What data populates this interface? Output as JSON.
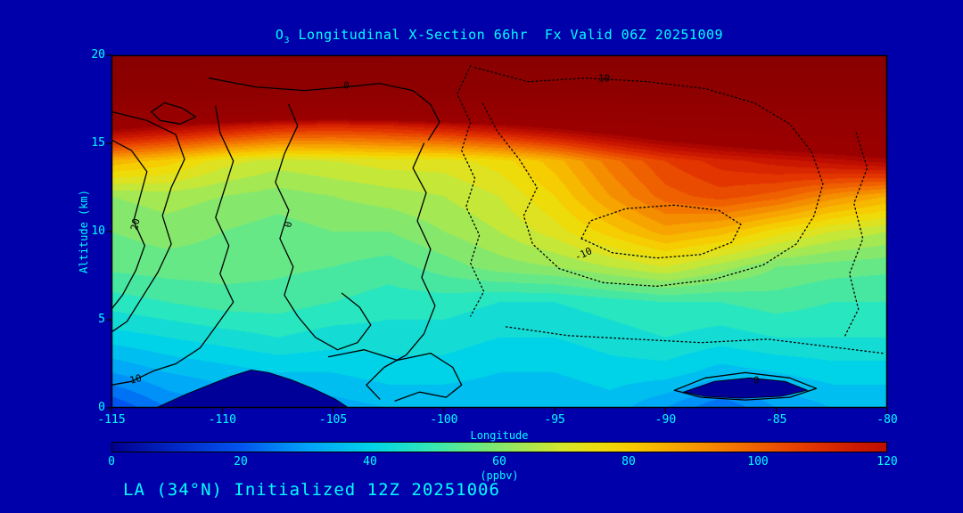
{
  "colors": {
    "bg": "#0000AA",
    "text": "#00FFFF",
    "frame": "#000000",
    "contour": "#000000"
  },
  "title": {
    "full": "O3 Longitudinal X-Section 66hr  Fx Valid 06Z 20251009",
    "prefix": "O",
    "sub": "3",
    "rest": " Longitudinal X-Section 66hr  Fx Valid 06Z 20251009"
  },
  "annotation": "LA (34°N) Initialized 12Z 20251006",
  "axes": {
    "x": {
      "label": "Longitude",
      "ticks": [
        -115,
        -110,
        -105,
        -100,
        -95,
        -90,
        -85,
        -80
      ],
      "range": [
        -115,
        -80
      ]
    },
    "y": {
      "label": "Altitude (km)",
      "ticks": [
        0,
        5,
        10,
        15,
        20
      ],
      "range": [
        0,
        20
      ]
    }
  },
  "colorbar": {
    "ticks": [
      0,
      20,
      40,
      60,
      80,
      100,
      120
    ],
    "unit": "(ppbv)",
    "range": [
      0,
      120
    ]
  },
  "chart_data": {
    "type": "heatmap",
    "title": "O3 Longitudinal X-Section 66hr  Fx Valid 06Z 20251009",
    "xlabel": "Longitude",
    "ylabel": "Altitude (km)",
    "units": "ppbv",
    "x_range": [
      -115,
      -80
    ],
    "y_range": [
      0,
      20
    ],
    "value_range": [
      0,
      120
    ],
    "grid": false,
    "lons": [
      -115,
      -112.5,
      -110,
      -107.5,
      -105,
      -102.5,
      -100,
      -97.5,
      -95,
      -92.5,
      -90,
      -87.5,
      -85,
      -82.5,
      -80
    ],
    "alts": [
      0,
      2,
      4,
      6,
      8,
      10,
      12,
      14,
      16,
      18,
      20
    ],
    "values": [
      [
        18,
        26,
        30,
        32,
        32,
        34,
        34,
        34,
        34,
        36,
        30,
        22,
        30,
        34,
        34
      ],
      [
        30,
        34,
        36,
        38,
        38,
        40,
        40,
        38,
        38,
        40,
        40,
        36,
        38,
        40,
        40
      ],
      [
        40,
        42,
        44,
        46,
        44,
        44,
        44,
        42,
        42,
        44,
        46,
        44,
        46,
        46,
        46
      ],
      [
        48,
        50,
        52,
        52,
        50,
        48,
        48,
        46,
        46,
        48,
        50,
        50,
        52,
        50,
        50
      ],
      [
        55,
        56,
        56,
        55,
        54,
        52,
        56,
        60,
        62,
        66,
        70,
        64,
        58,
        56,
        55
      ],
      [
        58,
        60,
        58,
        56,
        58,
        58,
        62,
        66,
        72,
        80,
        88,
        84,
        76,
        70,
        66
      ],
      [
        62,
        64,
        62,
        60,
        62,
        64,
        66,
        70,
        78,
        90,
        100,
        104,
        100,
        92,
        86
      ],
      [
        85,
        80,
        72,
        68,
        70,
        72,
        72,
        76,
        84,
        96,
        106,
        112,
        116,
        120,
        124
      ],
      [
        132,
        126,
        120,
        114,
        112,
        114,
        118,
        124,
        130,
        136,
        142,
        146,
        150,
        152,
        154
      ],
      [
        200,
        200,
        196,
        192,
        192,
        192,
        196,
        200,
        200,
        200,
        200,
        200,
        200,
        200,
        200
      ],
      [
        220,
        220,
        220,
        220,
        220,
        220,
        220,
        220,
        220,
        220,
        220,
        220,
        220,
        220,
        220
      ]
    ],
    "band_step": 4,
    "colormap": [
      [
        0,
        "#000090"
      ],
      [
        10,
        "#0028C8"
      ],
      [
        20,
        "#0055F0"
      ],
      [
        30,
        "#00A0FA"
      ],
      [
        40,
        "#00D2E8"
      ],
      [
        48,
        "#28E6C0"
      ],
      [
        55,
        "#5FE88C"
      ],
      [
        63,
        "#9CE85A"
      ],
      [
        70,
        "#D6E62A"
      ],
      [
        78,
        "#F6D800"
      ],
      [
        88,
        "#F7A300"
      ],
      [
        98,
        "#F26B00"
      ],
      [
        108,
        "#E33500"
      ],
      [
        118,
        "#C41000"
      ],
      [
        128,
        "#9B0000"
      ],
      [
        240,
        "#860000"
      ]
    ],
    "contours": [
      {
        "dashed": false,
        "closed": false,
        "points": [
          [
            -115,
            15.2
          ],
          [
            -114.1,
            14.6
          ],
          [
            -113.4,
            13.4
          ],
          [
            -113.7,
            12.0
          ],
          [
            -114.0,
            10.6
          ],
          [
            -113.5,
            9.2
          ],
          [
            -113.9,
            7.8
          ],
          [
            -114.5,
            6.4
          ],
          [
            -115,
            5.6
          ]
        ]
      },
      {
        "dashed": false,
        "closed": false,
        "points": [
          [
            -115,
            16.8
          ],
          [
            -113.4,
            16.3
          ],
          [
            -112.1,
            15.5
          ],
          [
            -111.7,
            14.1
          ],
          [
            -112.3,
            12.5
          ],
          [
            -112.7,
            10.9
          ],
          [
            -112.3,
            9.3
          ],
          [
            -112.9,
            7.7
          ],
          [
            -113.6,
            6.3
          ],
          [
            -114.3,
            4.9
          ],
          [
            -115,
            4.3
          ]
        ]
      },
      {
        "dashed": false,
        "closed": true,
        "points": [
          [
            -112.6,
            17.3
          ],
          [
            -111.8,
            17.0
          ],
          [
            -111.2,
            16.5
          ],
          [
            -111.9,
            16.1
          ],
          [
            -112.8,
            16.3
          ],
          [
            -113.2,
            16.8
          ]
        ]
      },
      {
        "dashed": false,
        "closed": false,
        "points": [
          [
            -110.3,
            17.1
          ],
          [
            -110.1,
            15.6
          ],
          [
            -109.5,
            14.0
          ],
          [
            -109.9,
            12.4
          ],
          [
            -110.3,
            10.8
          ],
          [
            -109.7,
            9.2
          ],
          [
            -110.1,
            7.6
          ],
          [
            -109.5,
            6.0
          ],
          [
            -110.3,
            4.6
          ],
          [
            -111.0,
            3.4
          ],
          [
            -112.1,
            2.5
          ],
          [
            -113.1,
            2.1
          ],
          [
            -114.1,
            1.5
          ],
          [
            -115,
            1.3
          ]
        ]
      },
      {
        "dashed": false,
        "closed": false,
        "points": [
          [
            -107.0,
            17.2
          ],
          [
            -106.6,
            16.0
          ],
          [
            -107.2,
            14.4
          ],
          [
            -107.6,
            12.8
          ],
          [
            -107.0,
            11.2
          ],
          [
            -107.4,
            9.6
          ],
          [
            -106.8,
            8.0
          ],
          [
            -107.2,
            6.4
          ],
          [
            -106.6,
            5.2
          ],
          [
            -105.8,
            4.0
          ],
          [
            -104.8,
            3.3
          ],
          [
            -103.9,
            3.7
          ],
          [
            -103.3,
            4.7
          ],
          [
            -103.8,
            5.7
          ],
          [
            -104.6,
            6.5
          ]
        ]
      },
      {
        "dashed": false,
        "closed": false,
        "points": [
          [
            -110.6,
            18.7
          ],
          [
            -108.5,
            18.2
          ],
          [
            -106.3,
            18.0
          ],
          [
            -104.4,
            18.2
          ],
          [
            -102.9,
            18.4
          ],
          [
            -101.4,
            18.0
          ],
          [
            -100.6,
            17.2
          ],
          [
            -100.2,
            16.2
          ],
          [
            -100.7,
            15.2
          ]
        ]
      },
      {
        "dashed": false,
        "closed": false,
        "points": [
          [
            -100.9,
            15.0
          ],
          [
            -101.4,
            13.6
          ],
          [
            -100.8,
            12.2
          ],
          [
            -101.2,
            10.6
          ],
          [
            -100.6,
            9.0
          ],
          [
            -101.0,
            7.4
          ],
          [
            -100.4,
            5.8
          ],
          [
            -100.9,
            4.2
          ],
          [
            -101.7,
            3.0
          ],
          [
            -102.7,
            2.3
          ],
          [
            -103.5,
            1.3
          ],
          [
            -102.9,
            0.5
          ]
        ]
      },
      {
        "dashed": false,
        "closed": false,
        "points": [
          [
            -105.2,
            2.9
          ],
          [
            -103.6,
            3.3
          ],
          [
            -102.1,
            2.7
          ],
          [
            -100.6,
            3.1
          ],
          [
            -99.6,
            2.3
          ],
          [
            -99.2,
            1.3
          ],
          [
            -99.9,
            0.6
          ],
          [
            -101.1,
            0.9
          ],
          [
            -102.2,
            0.4
          ]
        ]
      },
      {
        "dashed": false,
        "closed": true,
        "points": [
          [
            -89.6,
            1.0
          ],
          [
            -88.2,
            1.7
          ],
          [
            -86.4,
            2.0
          ],
          [
            -84.4,
            1.7
          ],
          [
            -83.2,
            1.1
          ],
          [
            -84.4,
            0.6
          ],
          [
            -86.4,
            0.45
          ],
          [
            -88.4,
            0.6
          ]
        ]
      },
      {
        "dashed": true,
        "closed": false,
        "points": [
          [
            -98.6,
            19.3
          ],
          [
            -96.2,
            18.5
          ],
          [
            -93.6,
            18.7
          ],
          [
            -90.8,
            18.5
          ],
          [
            -88.2,
            18.1
          ],
          [
            -86.0,
            17.3
          ],
          [
            -84.4,
            16.1
          ],
          [
            -83.4,
            14.5
          ],
          [
            -82.9,
            12.7
          ],
          [
            -83.3,
            10.9
          ],
          [
            -84.1,
            9.3
          ],
          [
            -85.6,
            8.1
          ],
          [
            -87.8,
            7.3
          ],
          [
            -90.4,
            6.9
          ],
          [
            -92.8,
            7.1
          ],
          [
            -94.8,
            7.9
          ],
          [
            -96.0,
            9.3
          ],
          [
            -96.4,
            10.9
          ],
          [
            -95.8,
            12.5
          ],
          [
            -96.6,
            14.1
          ],
          [
            -97.6,
            15.7
          ],
          [
            -98.3,
            17.4
          ]
        ]
      },
      {
        "dashed": true,
        "closed": true,
        "points": [
          [
            -93.8,
            9.6
          ],
          [
            -92.4,
            8.8
          ],
          [
            -90.4,
            8.5
          ],
          [
            -88.4,
            8.7
          ],
          [
            -87.0,
            9.4
          ],
          [
            -86.6,
            10.4
          ],
          [
            -87.6,
            11.2
          ],
          [
            -89.6,
            11.5
          ],
          [
            -91.8,
            11.3
          ],
          [
            -93.4,
            10.6
          ]
        ]
      },
      {
        "dashed": true,
        "closed": false,
        "points": [
          [
            -81.4,
            15.6
          ],
          [
            -80.9,
            13.6
          ],
          [
            -81.5,
            11.6
          ],
          [
            -81.1,
            9.6
          ],
          [
            -81.7,
            7.6
          ],
          [
            -81.3,
            5.6
          ],
          [
            -81.9,
            4.1
          ]
        ]
      },
      {
        "dashed": true,
        "closed": false,
        "points": [
          [
            -97.2,
            4.6
          ],
          [
            -94.4,
            4.1
          ],
          [
            -91.4,
            3.9
          ],
          [
            -88.4,
            3.7
          ],
          [
            -85.4,
            3.9
          ],
          [
            -82.8,
            3.5
          ],
          [
            -80.2,
            3.1
          ]
        ]
      },
      {
        "dashed": true,
        "closed": false,
        "points": [
          [
            -98.8,
            19.4
          ],
          [
            -99.4,
            17.8
          ],
          [
            -98.8,
            16.2
          ],
          [
            -99.2,
            14.6
          ],
          [
            -98.6,
            13.0
          ],
          [
            -99.0,
            11.4
          ],
          [
            -98.4,
            9.8
          ],
          [
            -98.8,
            8.2
          ],
          [
            -98.2,
            6.6
          ],
          [
            -98.8,
            5.2
          ]
        ]
      }
    ],
    "contour_labels": [
      {
        "text": "20",
        "lon": -113.9,
        "alt": 10.4,
        "rot": -78
      },
      {
        "text": "10",
        "lon": -113.9,
        "alt": 1.6,
        "rot": -15
      },
      {
        "text": "0",
        "lon": -107.0,
        "alt": 10.4,
        "rot": -80
      },
      {
        "text": "0",
        "lon": -104.4,
        "alt": 18.25,
        "rot": 0
      },
      {
        "text": "-10",
        "lon": -92.9,
        "alt": 18.65,
        "rot": 0
      },
      {
        "text": "-10",
        "lon": -93.7,
        "alt": 8.7,
        "rot": -25
      },
      {
        "text": "0",
        "lon": -85.9,
        "alt": 1.55,
        "rot": 0
      }
    ],
    "terrain": {
      "color": "#000099",
      "outline": "#000000",
      "polys": [
        [
          [
            -113.0,
            0
          ],
          [
            -111.6,
            0.8
          ],
          [
            -110.6,
            1.3
          ],
          [
            -109.6,
            1.8
          ],
          [
            -108.7,
            2.15
          ],
          [
            -107.9,
            2.0
          ],
          [
            -106.9,
            1.6
          ],
          [
            -105.9,
            1.1
          ],
          [
            -104.9,
            0.5
          ],
          [
            -104.3,
            0
          ]
        ],
        [
          [
            -89.2,
            0.9
          ],
          [
            -87.8,
            1.5
          ],
          [
            -86.2,
            1.7
          ],
          [
            -84.6,
            1.5
          ],
          [
            -83.6,
            1.0
          ],
          [
            -84.8,
            0.65
          ],
          [
            -86.6,
            0.55
          ],
          [
            -88.2,
            0.65
          ]
        ]
      ]
    }
  }
}
